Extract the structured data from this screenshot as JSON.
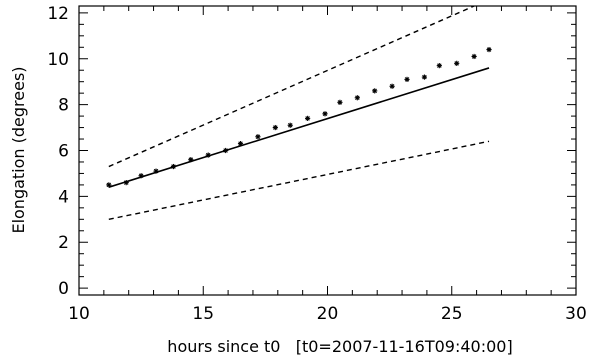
{
  "chart_data": {
    "type": "scatter",
    "xlabel": "hours since t0   [t0=2007-11-16T09:40:00]",
    "ylabel": "Elongation (degrees)",
    "xlim": [
      10,
      30
    ],
    "ylim": [
      -0.3,
      12.3
    ],
    "x_ticks": [
      10,
      15,
      20,
      25,
      30
    ],
    "y_ticks": [
      0,
      2,
      4,
      6,
      8,
      10,
      12
    ],
    "grid": false,
    "legend": "none",
    "series": [
      {
        "role": "observations",
        "marker": "asterisk",
        "x": [
          11.2,
          11.9,
          12.5,
          13.1,
          13.8,
          14.5,
          15.2,
          15.9,
          16.5,
          17.2,
          17.9,
          18.5,
          19.2,
          19.9,
          20.5,
          21.2,
          21.9,
          22.6,
          23.2,
          23.9,
          24.5,
          25.2,
          25.9,
          26.5
        ],
        "y": [
          4.5,
          4.6,
          4.9,
          5.1,
          5.3,
          5.6,
          5.8,
          6.0,
          6.3,
          6.6,
          7.0,
          7.1,
          7.4,
          7.6,
          8.1,
          8.3,
          8.6,
          8.8,
          9.1,
          9.2,
          9.7,
          9.8,
          10.1,
          10.4
        ]
      },
      {
        "role": "fit",
        "style": "solid",
        "x": [
          11.2,
          26.5
        ],
        "y": [
          4.4,
          9.6
        ]
      },
      {
        "role": "upper-bound",
        "style": "dashed",
        "x": [
          11.2,
          25.9
        ],
        "y": [
          5.3,
          12.3
        ]
      },
      {
        "role": "lower-bound",
        "style": "dashed",
        "x": [
          11.2,
          26.5
        ],
        "y": [
          3.0,
          6.4
        ]
      }
    ]
  }
}
